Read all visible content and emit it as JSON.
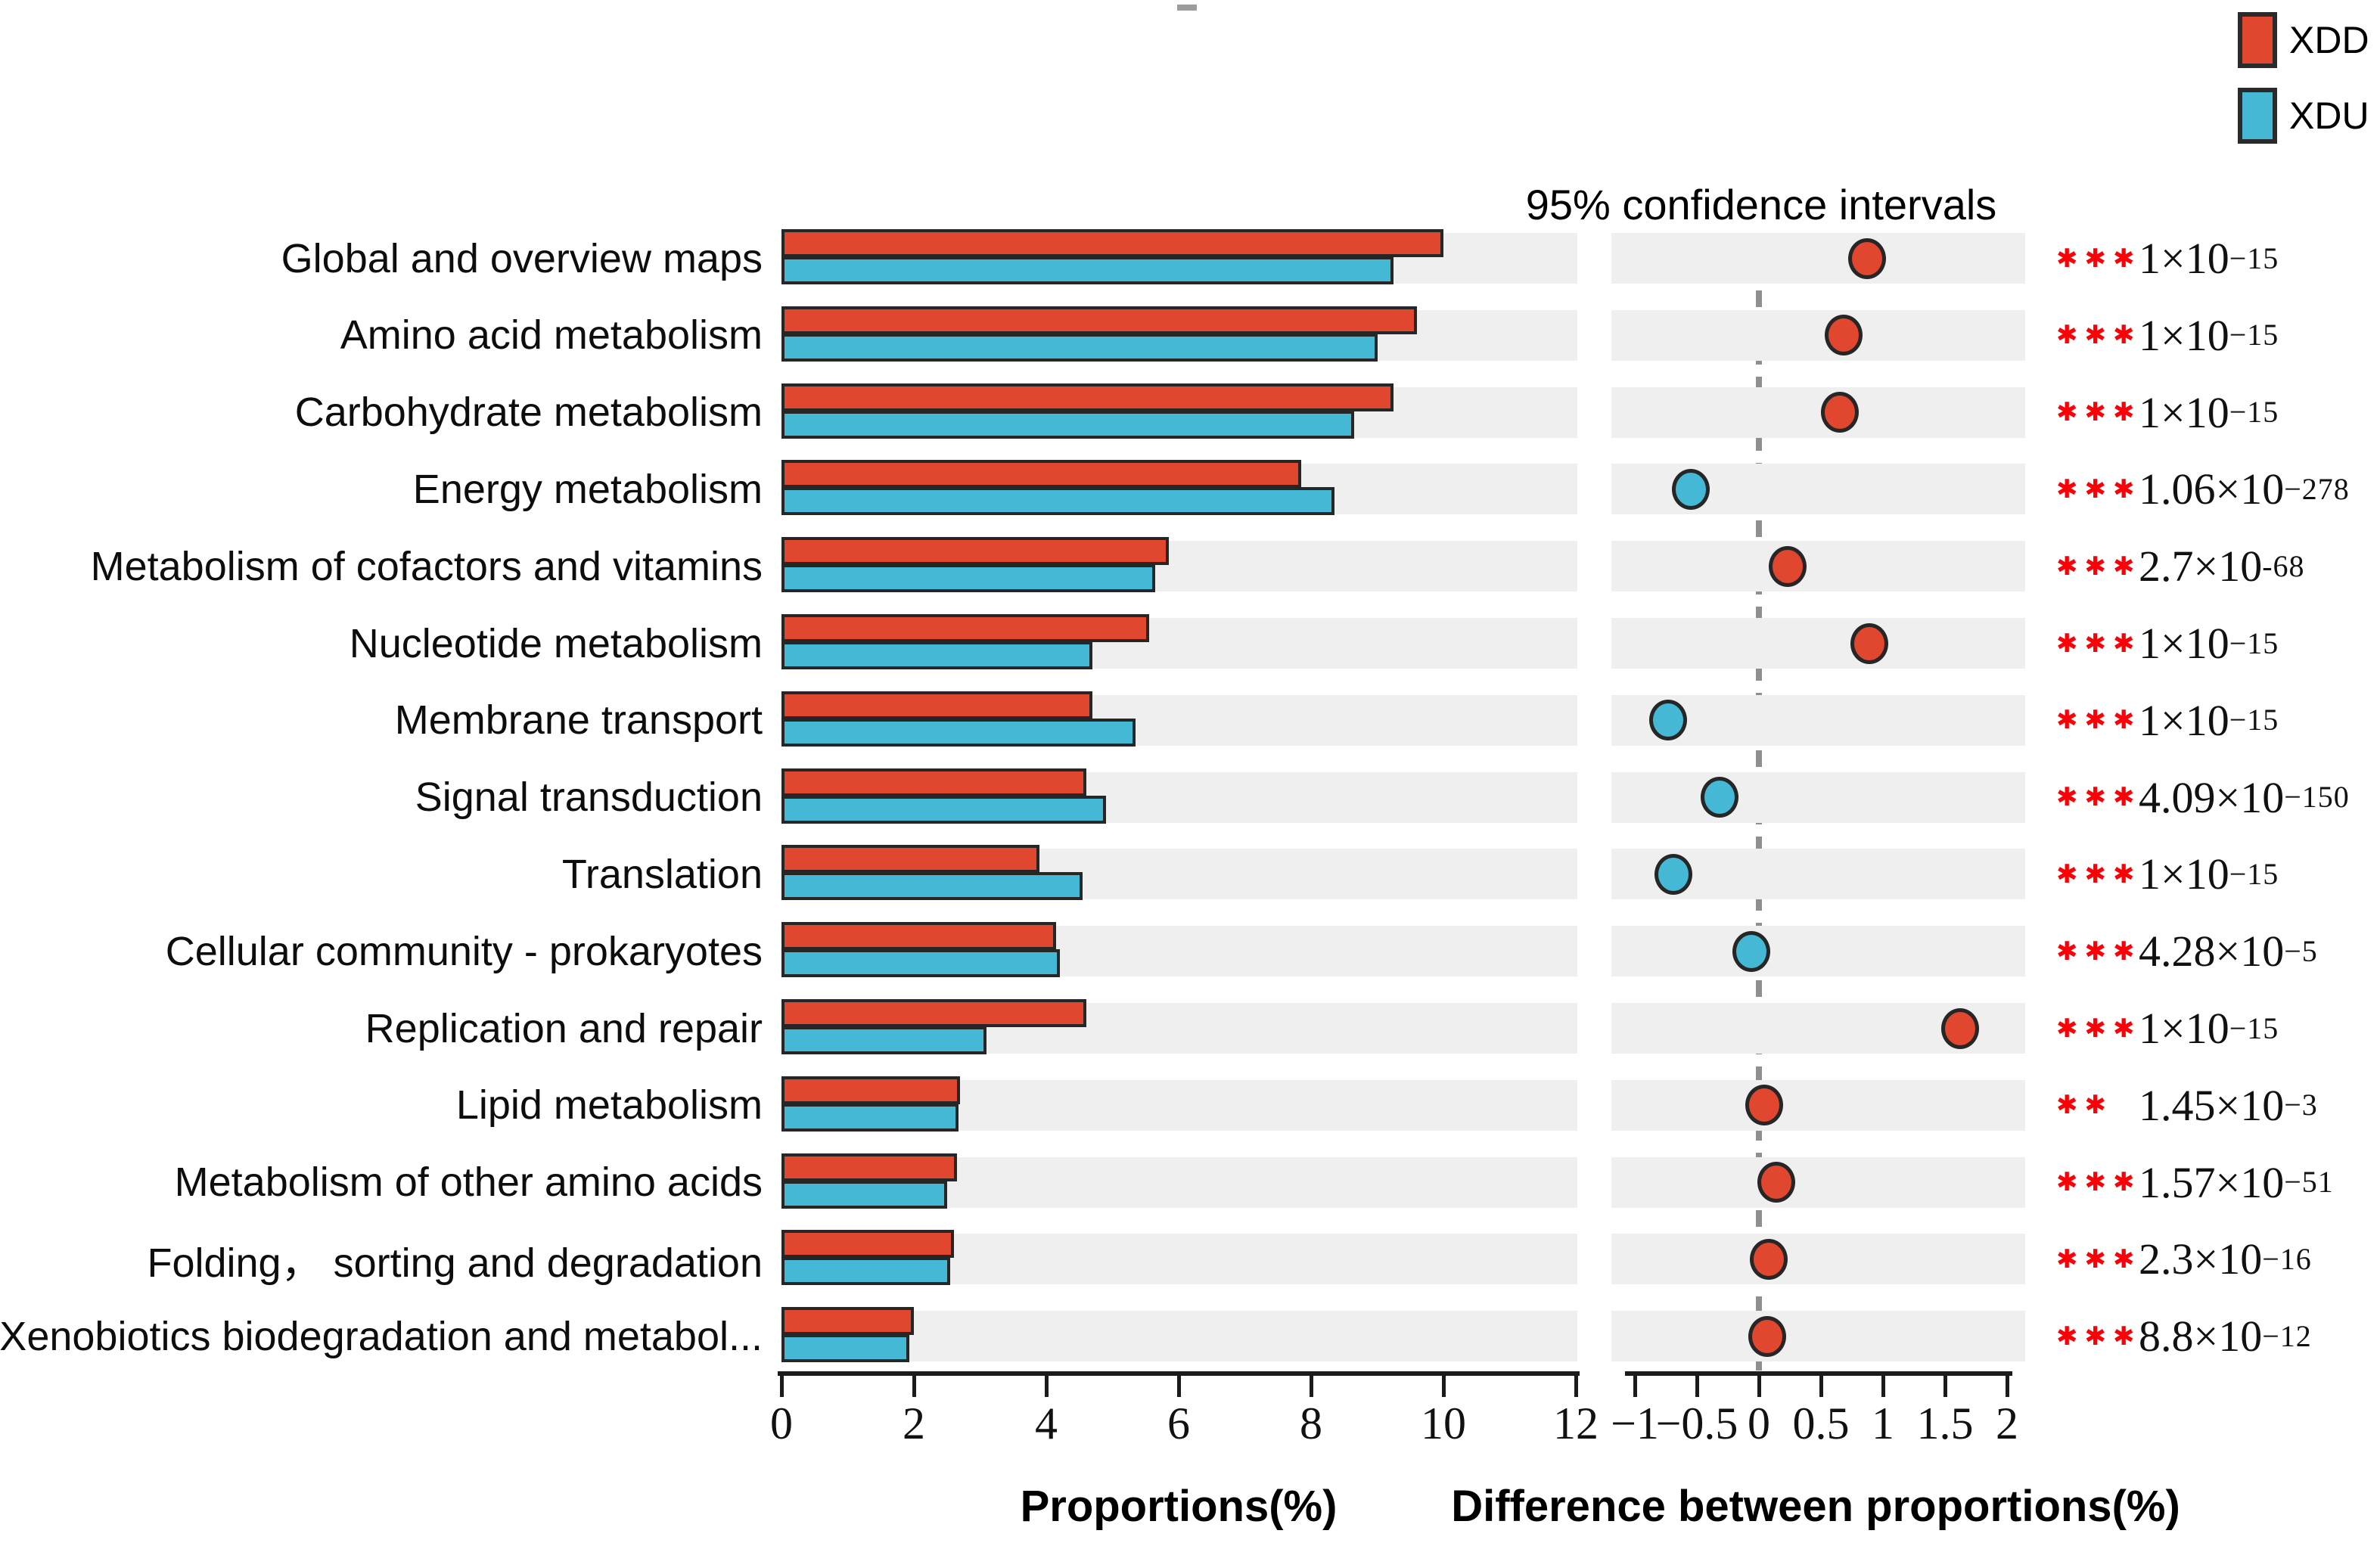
{
  "legend": {
    "items": [
      {
        "label": "XDD",
        "color": "#E0472E"
      },
      {
        "label": "XDU",
        "color": "#45B8D6"
      }
    ]
  },
  "right_panel_title": "95% confidence intervals",
  "left_axis": {
    "label": "Proportions(%)",
    "ticks": [
      {
        "label": "0",
        "value": 0
      },
      {
        "label": "2",
        "value": 2
      },
      {
        "label": "4",
        "value": 4
      },
      {
        "label": "6",
        "value": 6
      },
      {
        "label": "8",
        "value": 8
      },
      {
        "label": "10",
        "value": 10
      },
      {
        "label": "12",
        "value": 12
      }
    ]
  },
  "right_axis": {
    "label": "Difference between proportions(%)",
    "ticks": [
      {
        "label": "−1",
        "value": -1
      },
      {
        "label": "−0.5",
        "value": -0.5
      },
      {
        "label": "0",
        "value": 0
      },
      {
        "label": "0.5",
        "value": 0.5
      },
      {
        "label": "1",
        "value": 1
      },
      {
        "label": "1.5",
        "value": 1.5
      },
      {
        "label": "2",
        "value": 2
      }
    ]
  },
  "chart_data": {
    "type": "bar",
    "orientation": "horizontal",
    "title": "95% confidence intervals",
    "xlabel_left": "Proportions(%)",
    "xlabel_right": "Difference between proportions(%)",
    "xlim_left": [
      0,
      12
    ],
    "xlim_right": [
      -1,
      2
    ],
    "grid": "row-stripes",
    "legend_position": "top-right",
    "categories": [
      "Global and overview maps",
      "Amino acid metabolism",
      "Carbohydrate metabolism",
      "Energy metabolism",
      "Metabolism of cofactors and vitamins",
      "Nucleotide metabolism",
      "Membrane transport",
      "Signal transduction",
      "Translation",
      "Cellular community - prokaryotes",
      "Replication and repair",
      "Lipid metabolism",
      "Metabolism of other amino acids",
      "Folding，  sorting and degradation",
      "Xenobiotics biodegradation and metabol..."
    ],
    "series": [
      {
        "name": "XDD",
        "color": "#E0472E",
        "values": [
          10.0,
          9.6,
          9.25,
          7.85,
          5.85,
          5.55,
          4.7,
          4.6,
          3.9,
          4.15,
          4.6,
          2.7,
          2.65,
          2.6,
          2.0
        ]
      },
      {
        "name": "XDU",
        "color": "#45B8D6",
        "values": [
          9.25,
          9.0,
          8.65,
          8.35,
          5.65,
          4.7,
          5.35,
          4.9,
          4.55,
          4.2,
          3.1,
          2.67,
          2.5,
          2.55,
          1.93
        ]
      }
    ],
    "difference": {
      "name": "Difference between proportions (XDD − XDU)",
      "values": [
        0.87,
        0.68,
        0.65,
        -0.55,
        0.23,
        0.89,
        -0.73,
        -0.32,
        -0.69,
        -0.06,
        1.62,
        0.04,
        0.14,
        0.08,
        0.07
      ],
      "positive_color": "#E0472E",
      "negative_color": "#45B8D6",
      "zero_line": 0
    },
    "significance": [
      "***",
      "***",
      "***",
      "***",
      "***",
      "***",
      "***",
      "***",
      "***",
      "***",
      "***",
      "**",
      "***",
      "***",
      "***"
    ],
    "p_values": [
      {
        "coef": "1",
        "exp": "−15"
      },
      {
        "coef": "1",
        "exp": "−15"
      },
      {
        "coef": "1",
        "exp": "−15"
      },
      {
        "coef": "1.06",
        "exp": "−278"
      },
      {
        "coef": "2.7",
        "exp": "-68"
      },
      {
        "coef": "1",
        "exp": "−15"
      },
      {
        "coef": "1",
        "exp": "−15"
      },
      {
        "coef": "4.09",
        "exp": "−150"
      },
      {
        "coef": "1",
        "exp": "−15"
      },
      {
        "coef": "4.28",
        "exp": "−5"
      },
      {
        "coef": "1",
        "exp": "−15"
      },
      {
        "coef": "1.45",
        "exp": "−3"
      },
      {
        "coef": "1.57",
        "exp": "−51"
      },
      {
        "coef": "2.3",
        "exp": "−16"
      },
      {
        "coef": "8.8",
        "exp": "−12"
      }
    ]
  }
}
